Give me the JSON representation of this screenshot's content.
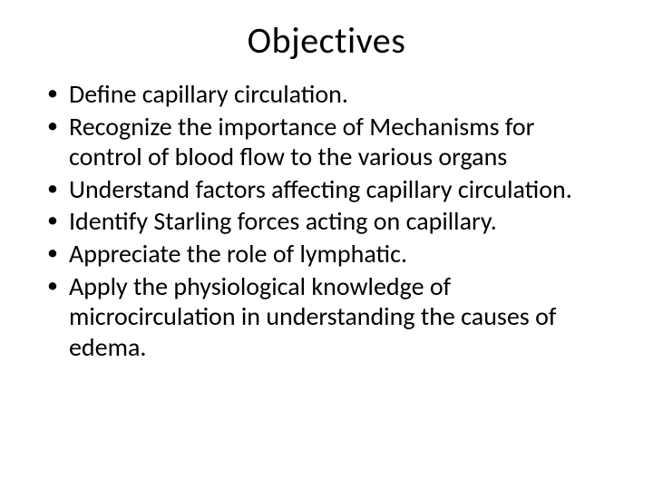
{
  "slide": {
    "title": "Objectives",
    "title_fontsize": 40,
    "title_align": "center",
    "body_fontsize": 28,
    "background_color": "#ffffff",
    "text_color": "#000000",
    "font_family": "Calibri",
    "bullet_char": "•",
    "bullets": [
      "Define capillary circulation.",
      "Recognize the importance of Mechanisms for control of blood flow to the various organs",
      "Understand factors affecting capillary circulation.",
      "Identify Starling forces acting on capillary.",
      "Appreciate the role of lymphatic.",
      "Apply the physiological knowledge of microcirculation in understanding the causes of edema."
    ]
  }
}
